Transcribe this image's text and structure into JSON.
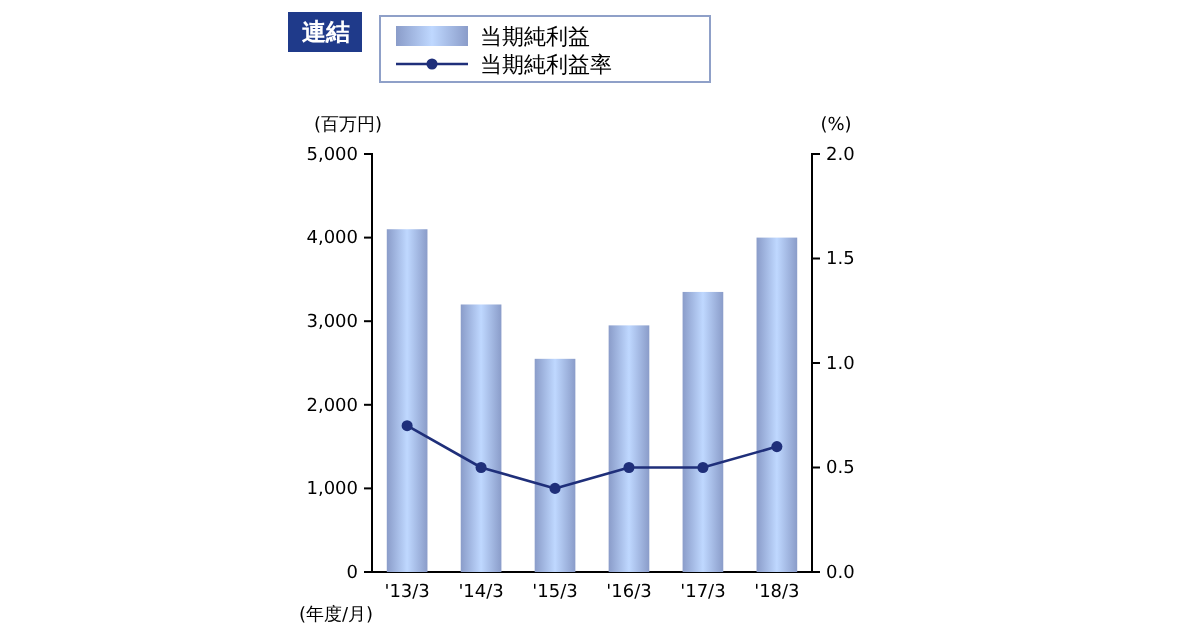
{
  "chart_data": {
    "type": "bar",
    "title": "連結",
    "ylabel": "(百万円)",
    "y2label": "(%)",
    "xlabel": "(年度/月)",
    "categories": [
      "'13/3",
      "'14/3",
      "'15/3",
      "'16/3",
      "'17/3",
      "'18/3"
    ],
    "series": [
      {
        "name": "当期純利益",
        "color": "#9aaee0",
        "values": [
          4100,
          3200,
          2550,
          2950,
          3350,
          4000
        ]
      },
      {
        "name": "当期純利益率",
        "type": "line",
        "axis": "y2",
        "color": "#1f2f7a",
        "marker": "circle",
        "values": [
          0.7,
          0.5,
          0.4,
          0.5,
          0.5,
          0.6
        ]
      }
    ],
    "ylim": [
      0,
      5000
    ],
    "yticks": [
      {
        "value": 0,
        "label": "0"
      },
      {
        "value": 1000,
        "label": "1,000"
      },
      {
        "value": 2000,
        "label": "2,000"
      },
      {
        "value": 3000,
        "label": "3,000"
      },
      {
        "value": 4000,
        "label": "4,000"
      },
      {
        "value": 5000,
        "label": "5,000"
      }
    ],
    "y2lim": [
      0,
      2
    ],
    "y2ticks": [
      {
        "value": 0,
        "label": "0.0"
      },
      {
        "value": 0.5,
        "label": "0.5"
      },
      {
        "value": 1,
        "label": "1.0"
      },
      {
        "value": 1.5,
        "label": "1.5"
      },
      {
        "value": 2,
        "label": "2.0"
      }
    ],
    "legend": "top",
    "grid": false
  }
}
